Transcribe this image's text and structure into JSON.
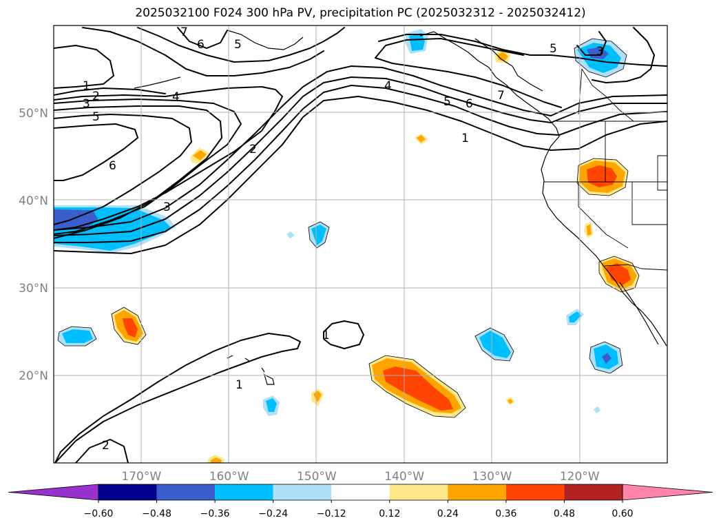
{
  "title": "2025032100 F024 300 hPa PV, precipitation PC (2025032312 - 2025032412)",
  "map": {
    "lon_range": [
      -180,
      -110
    ],
    "lat_range": [
      10,
      60
    ],
    "lon_labels": [
      "170°W",
      "160°W",
      "150°W",
      "140°W",
      "130°W",
      "120°W"
    ],
    "lon_values": [
      -170,
      -160,
      -150,
      -140,
      -130,
      -120
    ],
    "lat_labels": [
      "50°N",
      "40°N",
      "30°N",
      "20°N"
    ],
    "lat_values": [
      50,
      40,
      30,
      20
    ]
  },
  "pv_contour_labels": [
    {
      "text": "1"
    },
    {
      "text": "2"
    },
    {
      "text": "3"
    },
    {
      "text": "5"
    },
    {
      "text": "4"
    },
    {
      "text": "6"
    },
    {
      "text": "6"
    },
    {
      "text": "5"
    },
    {
      "text": "7"
    },
    {
      "text": "2"
    },
    {
      "text": "3"
    },
    {
      "text": "4"
    },
    {
      "text": "5"
    },
    {
      "text": "6"
    },
    {
      "text": "1"
    },
    {
      "text": "7"
    },
    {
      "text": "5"
    },
    {
      "text": "3"
    },
    {
      "text": "1"
    },
    {
      "text": "1"
    },
    {
      "text": "2"
    }
  ],
  "colorbar": {
    "colors": [
      "#9932cc",
      "#00008b",
      "#3a5fcd",
      "#00bfff",
      "#afe0fa",
      "#ffffff",
      "#ffe88a",
      "#ffa500",
      "#ff4500",
      "#b22222",
      "#ff85ab"
    ],
    "tick_labels": [
      "−0.60",
      "−0.48",
      "−0.36",
      "−0.24",
      "−0.12",
      "0.12",
      "0.24",
      "0.36",
      "0.48",
      "0.60"
    ]
  }
}
